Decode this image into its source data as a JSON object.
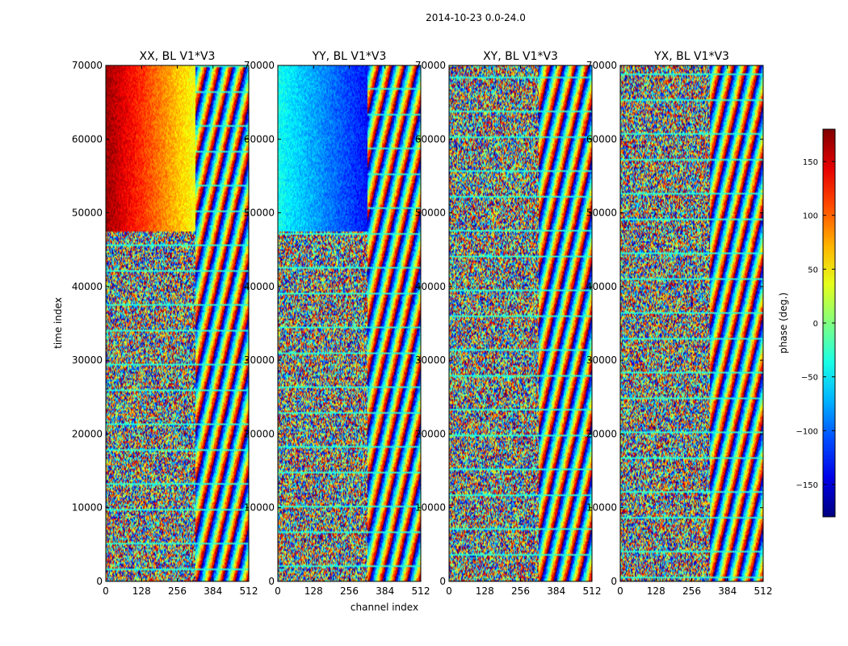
{
  "chart_data": {
    "type": "heatmap",
    "suptitle": "2014-10-23 0.0-24.0",
    "xlabel": "channel index",
    "ylabel": "time index",
    "xlim": [
      0,
      512
    ],
    "ylim": [
      0,
      70000
    ],
    "x_ticks": [
      0,
      128,
      256,
      384,
      512
    ],
    "y_ticks": [
      0,
      10000,
      20000,
      30000,
      40000,
      50000,
      60000,
      70000
    ],
    "panels": [
      {
        "title": "XX, BL V1*V3",
        "description_values": {
          "smooth_region_channels": [
            0,
            320
          ],
          "smooth_region_time": [
            47500,
            70000
          ],
          "smooth_phase_range_deg": [
            40,
            170
          ]
        }
      },
      {
        "title": "YY, BL V1*V3",
        "description_values": {
          "smooth_region_channels": [
            0,
            320
          ],
          "smooth_region_time": [
            47500,
            70000
          ],
          "smooth_phase_range_deg": [
            -130,
            -40
          ]
        }
      },
      {
        "title": "XY, BL V1*V3"
      },
      {
        "title": "YX, BL V1*V3"
      }
    ],
    "colorbar": {
      "label": "phase (deg.)",
      "range": [
        -180,
        180
      ],
      "ticks": [
        -150,
        -100,
        -50,
        0,
        50,
        100,
        150
      ],
      "tick_labels": [
        "−150",
        "−100",
        "−50",
        "0",
        "50",
        "100",
        "150"
      ],
      "colormap": "jet"
    }
  }
}
